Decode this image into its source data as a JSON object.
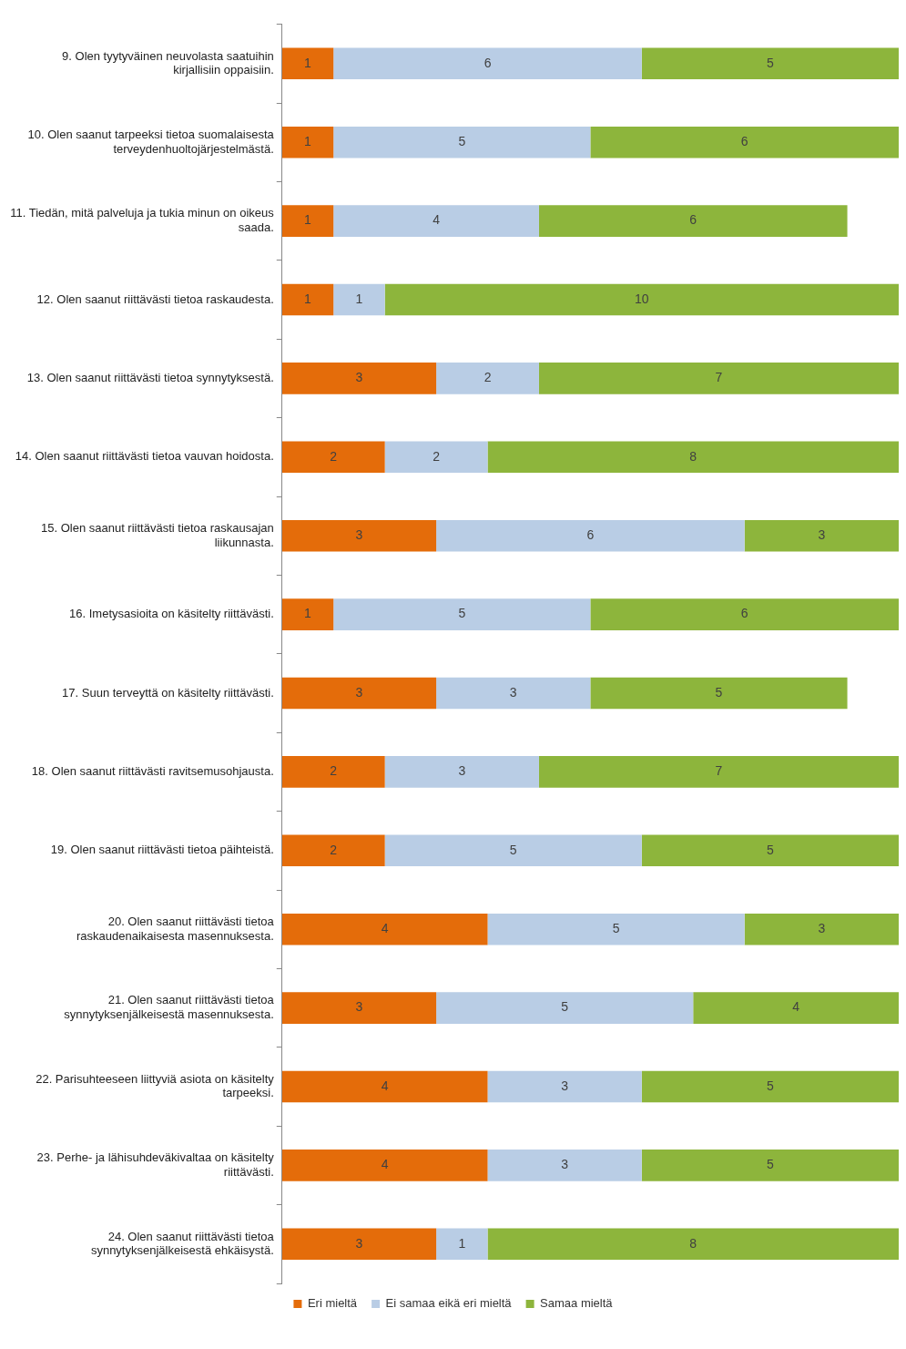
{
  "chart_data": {
    "type": "bar",
    "orientation": "horizontal",
    "stacked": true,
    "data_labels": true,
    "legend": "bottom",
    "categories": [
      "9. Olen tyytyväinen neuvolasta saatuihin kirjallisiin oppaisiin.",
      "10. Olen saanut tarpeeksi tietoa suomalaisesta terveydenhuoltojärjestelmästä.",
      "11. Tiedän, mitä palveluja ja tukia minun on oikeus saada.",
      "12. Olen saanut riittävästi tietoa raskaudesta.",
      "13. Olen saanut riittävästi tietoa synnytyksestä.",
      "14. Olen saanut riittävästi tietoa vauvan hoidosta.",
      "15. Olen saanut riittävästi tietoa raskausajan liikunnasta.",
      "16. Imetysasioita on käsitelty riittävästi.",
      "17. Suun terveyttä on käsitelty riittävästi.",
      "18. Olen saanut riittävästi ravitsemusohjausta.",
      "19. Olen saanut riittävästi tietoa päihteistä.",
      "20. Olen saanut riittävästi tietoa raskaudenaikaisesta masennuksesta.",
      "21. Olen saanut riittävästi tietoa synnytyksenjälkeisestä masennuksesta.",
      "22. Parisuhteeseen liittyviä asiota on käsitelty tarpeeksi.",
      "23. Perhe- ja lähisuhdeväkivaltaa on käsitelty riittävästi.",
      "24. Olen saanut riittävästi tietoa synnytyksenjälkeisestä ehkäisystä."
    ],
    "series": [
      {
        "name": "Eri mieltä",
        "color": "#e46c0a",
        "values": [
          1,
          1,
          1,
          1,
          3,
          2,
          3,
          1,
          3,
          2,
          2,
          4,
          3,
          4,
          4,
          3
        ]
      },
      {
        "name": "Ei samaa eikä eri mieltä",
        "color": "#b9cde5",
        "values": [
          6,
          5,
          4,
          1,
          2,
          2,
          6,
          5,
          3,
          3,
          5,
          5,
          5,
          3,
          3,
          1
        ]
      },
      {
        "name": "Samaa mieltä",
        "color": "#8db53c",
        "values": [
          5,
          6,
          6,
          10,
          7,
          8,
          3,
          6,
          5,
          7,
          5,
          3,
          4,
          5,
          5,
          8
        ]
      }
    ]
  }
}
